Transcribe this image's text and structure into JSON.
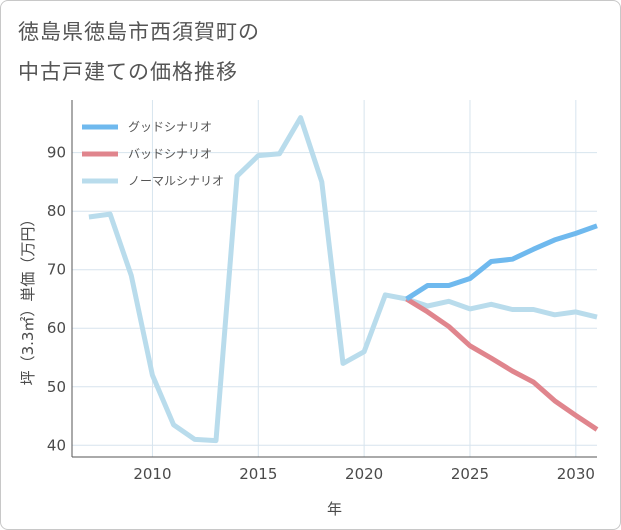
{
  "title_lines": [
    "徳島県徳島市西須賀町の",
    "中古戸建ての価格推移"
  ],
  "colors": {
    "good": "#6fb9ee",
    "bad": "#e0858d",
    "normal": "#b9dcec",
    "grid": "#d7e4ee",
    "axis": "#555555"
  },
  "chart_data": {
    "type": "line",
    "title": "徳島県徳島市西須賀町の中古戸建ての価格推移",
    "xlabel": "年",
    "ylabel": "坪（3.3㎡）単価（万円）",
    "xlim": [
      2006.2,
      2031
    ],
    "ylim": [
      38,
      99
    ],
    "xticks": [
      2010,
      2015,
      2020,
      2025,
      2030
    ],
    "yticks": [
      40,
      50,
      60,
      70,
      80,
      90
    ],
    "grid": true,
    "legend_position": "top-left",
    "series": [
      {
        "key": "normal",
        "name": "ノーマルシナリオ",
        "x": [
          2007,
          2008,
          2009,
          2010,
          2011,
          2012,
          2013,
          2014,
          2015,
          2016,
          2017,
          2018,
          2019,
          2020,
          2021,
          2022,
          2023,
          2024,
          2025,
          2026,
          2027,
          2028,
          2029,
          2030,
          2031
        ],
        "y": [
          79,
          79.5,
          69,
          52,
          43.5,
          41,
          40.8,
          86,
          89.5,
          89.8,
          96,
          85,
          54,
          56,
          65.7,
          65,
          63.8,
          64.6,
          63.3,
          64.1,
          63.2,
          63.2,
          62.3,
          62.8,
          61.9
        ]
      },
      {
        "key": "good",
        "name": "グッドシナリオ",
        "x": [
          2022,
          2023,
          2024,
          2025,
          2026,
          2027,
          2028,
          2029,
          2030,
          2031
        ],
        "y": [
          65,
          67.3,
          67.3,
          68.5,
          71.4,
          71.8,
          73.5,
          75.1,
          76.2,
          77.5
        ]
      },
      {
        "key": "bad",
        "name": "バッドシナリオ",
        "x": [
          2022,
          2023,
          2024,
          2025,
          2026,
          2027,
          2028,
          2029,
          2030,
          2031
        ],
        "y": [
          65,
          62.8,
          60.3,
          57,
          54.9,
          52.7,
          50.8,
          47.6,
          45.1,
          42.7
        ]
      }
    ],
    "legend": [
      {
        "key": "good",
        "name": "グッドシナリオ"
      },
      {
        "key": "bad",
        "name": "バッドシナリオ"
      },
      {
        "key": "normal",
        "name": "ノーマルシナリオ"
      }
    ]
  }
}
